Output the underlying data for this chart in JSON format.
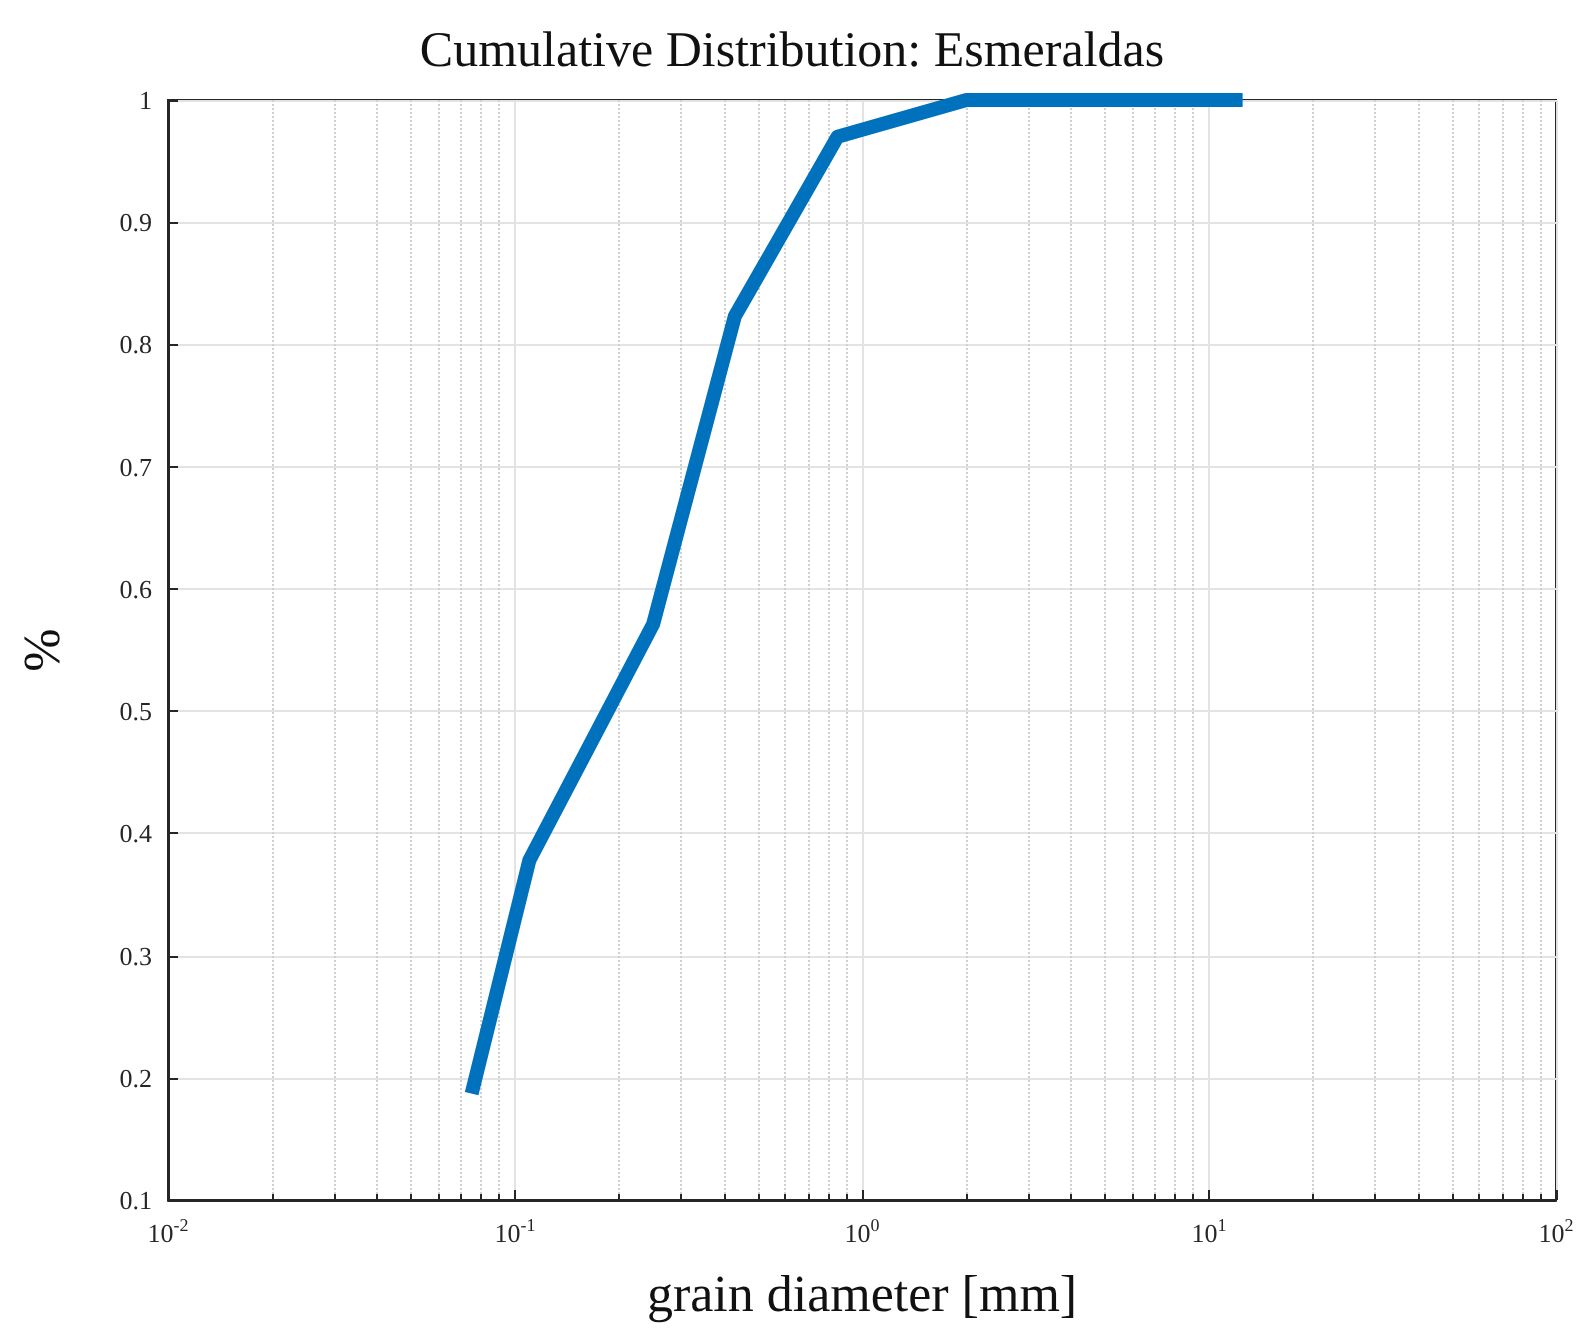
{
  "chart_data": {
    "type": "line",
    "title": "Cumulative Distribution: Esmeraldas",
    "xlabel": "grain diameter [mm]",
    "ylabel": "%",
    "x": [
      0.075,
      0.11,
      0.25,
      0.43,
      0.85,
      2.0,
      12.5
    ],
    "series": [
      {
        "color": "#0072bd",
        "values": [
          0.187,
          0.378,
          0.571,
          0.823,
          0.97,
          1,
          1
        ]
      }
    ],
    "log": "x",
    "xlim": [
      0.01,
      100
    ],
    "xticks": [
      {
        "value": 0.01,
        "label": "10$^{-2}$"
      },
      {
        "value": 0.1,
        "label": "10$^{-1}$"
      },
      {
        "value": 1,
        "label": "10$^{0}$"
      },
      {
        "value": 10,
        "label": "10$^{1}$"
      },
      {
        "value": 100,
        "label": "10$^{2}$"
      }
    ],
    "ylim": [
      0.1,
      1
    ],
    "yticks": [
      0.1,
      0.2,
      0.3,
      0.4,
      0.5,
      0.6,
      0.7,
      0.8,
      0.9,
      1
    ],
    "grid": true,
    "marker": "none",
    "line_style": "solid"
  }
}
